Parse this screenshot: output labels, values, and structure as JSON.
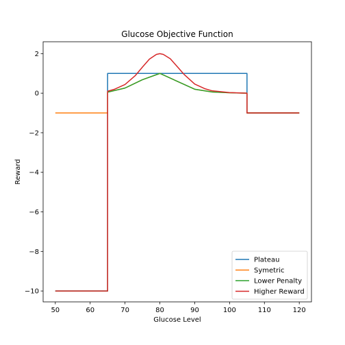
{
  "chart_data": {
    "type": "line",
    "title": "Glucose Objective Function",
    "xlabel": "Glucose Level",
    "ylabel": "Reward",
    "xlim": [
      46.5,
      123.5
    ],
    "ylim": [
      -10.55,
      2.6
    ],
    "xticks": [
      50,
      60,
      70,
      80,
      90,
      100,
      110,
      120
    ],
    "xtick_labels": [
      "50",
      "60",
      "70",
      "80",
      "90",
      "100",
      "110",
      "120"
    ],
    "yticks": [
      2,
      0,
      -2,
      -4,
      -6,
      -8,
      -10
    ],
    "ytick_labels": [
      "2",
      "0",
      "−2",
      "−4",
      "−6",
      "−8",
      "−10"
    ],
    "grid": false,
    "legend_position": "lower-right",
    "series": [
      {
        "name": "Plateau",
        "color": "#1f77b4",
        "x": [
          50,
          65,
          65.001,
          105,
          105.001,
          120
        ],
        "y": [
          -10,
          -10,
          1,
          1,
          -1,
          -1
        ]
      },
      {
        "name": "Symetric",
        "color": "#ff7f0e",
        "x": [
          50,
          65,
          65.001,
          70,
          75,
          80,
          85,
          90,
          95,
          100,
          105,
          105.001,
          120
        ],
        "y": [
          -1,
          -1,
          0.05,
          0.26,
          0.68,
          1.0,
          0.6,
          0.2,
          0.06,
          0.02,
          0.0,
          -1,
          -1
        ]
      },
      {
        "name": "Lower Penalty",
        "color": "#2ca02c",
        "x": [
          50,
          65,
          65.001,
          70,
          75,
          80,
          85,
          90,
          95,
          100,
          105,
          105.001,
          120
        ],
        "y": [
          -10,
          -10,
          0.05,
          0.26,
          0.68,
          1.0,
          0.6,
          0.2,
          0.06,
          0.02,
          0.0,
          -1,
          -1
        ]
      },
      {
        "name": "Higher Reward",
        "color": "#d62728",
        "x": [
          50,
          65,
          65.001,
          67,
          70,
          73,
          75,
          77,
          79,
          80,
          81,
          83,
          85,
          87,
          90,
          93,
          95,
          100,
          105,
          105.001,
          120
        ],
        "y": [
          -10,
          -10,
          0.1,
          0.2,
          0.44,
          0.9,
          1.32,
          1.72,
          1.96,
          2.0,
          1.96,
          1.74,
          1.34,
          0.94,
          0.46,
          0.22,
          0.12,
          0.03,
          0.0,
          -1,
          -1
        ]
      }
    ]
  }
}
